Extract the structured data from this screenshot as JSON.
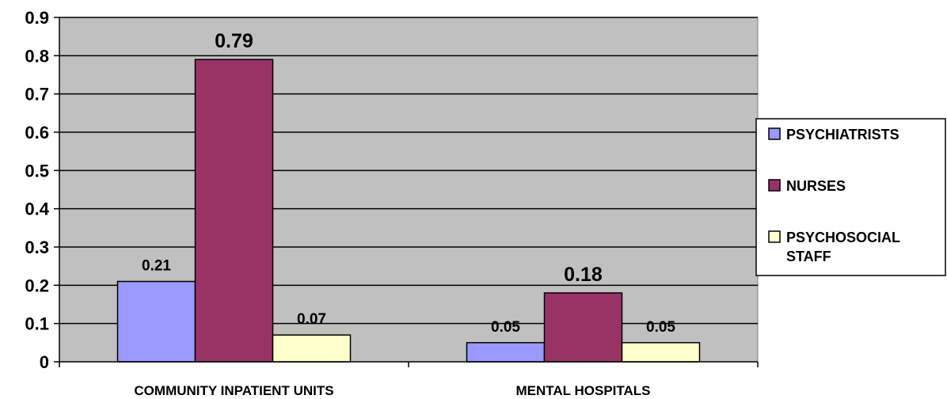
{
  "chart_data": {
    "type": "bar",
    "categories": [
      "COMMUNITY INPATIENT UNITS",
      "MENTAL HOSPITALS"
    ],
    "series": [
      {
        "name": "PSYCHIATRISTS",
        "values": [
          0.21,
          0.05
        ],
        "color": "#9999ff",
        "labels": [
          "0.21",
          "0.05"
        ],
        "label_size": [
          "sm",
          "sm"
        ]
      },
      {
        "name": "NURSES",
        "values": [
          0.79,
          0.18
        ],
        "color": "#993366",
        "labels": [
          "0.79",
          "0.18"
        ],
        "label_size": [
          "lg",
          "lg"
        ]
      },
      {
        "name": "PSYCHOSOCIAL STAFF",
        "legend_lines": [
          "PSYCHOSOCIAL",
          "STAFF"
        ],
        "values": [
          0.07,
          0.05
        ],
        "color": "#ffffcc",
        "labels": [
          "0.07",
          "0.05"
        ],
        "label_size": [
          "sm",
          "sm"
        ]
      }
    ],
    "ylim": [
      0,
      0.9
    ],
    "yticks": [
      "0",
      "0.1",
      "0.2",
      "0.3",
      "0.4",
      "0.5",
      "0.6",
      "0.7",
      "0.8",
      "0.9"
    ],
    "grid": true,
    "plot_background": "#c0c0c0",
    "legend_position": "right"
  }
}
